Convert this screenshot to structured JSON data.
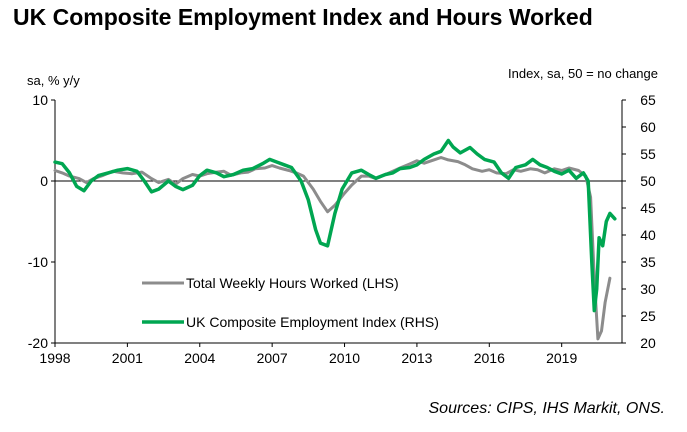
{
  "chart_data": {
    "type": "line",
    "title": "UK Composite Employment Index and Hours Worked",
    "left_axis_label": "sa, % y/y",
    "right_axis_label": "Index, sa, 50 = no change",
    "source": "Sources: CIPS, IHS Markit, ONS.",
    "x_ticks": [
      "1998",
      "2001",
      "2004",
      "2007",
      "2010",
      "2013",
      "2016",
      "2019"
    ],
    "x_range": [
      1998,
      2021.5
    ],
    "y_left": {
      "range": [
        -20,
        10
      ],
      "ticks": [
        "10",
        "0",
        "-10",
        "-20"
      ]
    },
    "y_right": {
      "range": [
        20,
        65
      ],
      "ticks": [
        "65",
        "60",
        "55",
        "50",
        "45",
        "40",
        "35",
        "30",
        "25",
        "20"
      ]
    },
    "grid": false,
    "legend_placement": "center-left",
    "series": [
      {
        "name": "Total Weekly Hours Worked (LHS)",
        "axis": "left",
        "color": "#8c8c8c",
        "points": [
          [
            1998.0,
            1.3
          ],
          [
            1998.3,
            1.0
          ],
          [
            1998.6,
            0.6
          ],
          [
            1999.0,
            0.3
          ],
          [
            1999.3,
            -0.2
          ],
          [
            1999.6,
            0.3
          ],
          [
            2000.0,
            0.7
          ],
          [
            2000.4,
            1.2
          ],
          [
            2000.8,
            1.0
          ],
          [
            2001.2,
            0.9
          ],
          [
            2001.6,
            1.1
          ],
          [
            2002.0,
            0.3
          ],
          [
            2002.3,
            -0.2
          ],
          [
            2002.7,
            0.2
          ],
          [
            2003.0,
            -0.4
          ],
          [
            2003.3,
            0.3
          ],
          [
            2003.7,
            0.8
          ],
          [
            2004.0,
            0.6
          ],
          [
            2004.3,
            0.9
          ],
          [
            2004.7,
            1.1
          ],
          [
            2005.0,
            1.2
          ],
          [
            2005.3,
            0.7
          ],
          [
            2005.7,
            1.0
          ],
          [
            2006.0,
            1.1
          ],
          [
            2006.3,
            1.5
          ],
          [
            2006.7,
            1.6
          ],
          [
            2007.0,
            1.9
          ],
          [
            2007.3,
            1.6
          ],
          [
            2007.7,
            1.3
          ],
          [
            2008.0,
            1.0
          ],
          [
            2008.3,
            0.6
          ],
          [
            2008.7,
            -1.0
          ],
          [
            2009.0,
            -2.5
          ],
          [
            2009.3,
            -3.8
          ],
          [
            2009.6,
            -3.0
          ],
          [
            2010.0,
            -1.5
          ],
          [
            2010.3,
            -0.5
          ],
          [
            2010.7,
            0.6
          ],
          [
            2011.0,
            0.6
          ],
          [
            2011.3,
            0.3
          ],
          [
            2011.7,
            0.8
          ],
          [
            2012.0,
            1.2
          ],
          [
            2012.3,
            1.6
          ],
          [
            2012.7,
            2.1
          ],
          [
            2013.0,
            2.5
          ],
          [
            2013.3,
            2.2
          ],
          [
            2013.7,
            2.6
          ],
          [
            2014.0,
            2.9
          ],
          [
            2014.3,
            2.6
          ],
          [
            2014.7,
            2.4
          ],
          [
            2015.0,
            2.0
          ],
          [
            2015.3,
            1.5
          ],
          [
            2015.7,
            1.2
          ],
          [
            2016.0,
            1.4
          ],
          [
            2016.3,
            1.0
          ],
          [
            2016.7,
            0.9
          ],
          [
            2017.0,
            1.4
          ],
          [
            2017.3,
            1.2
          ],
          [
            2017.7,
            1.5
          ],
          [
            2018.0,
            1.4
          ],
          [
            2018.3,
            1.0
          ],
          [
            2018.7,
            1.5
          ],
          [
            2019.0,
            1.3
          ],
          [
            2019.3,
            1.6
          ],
          [
            2019.7,
            1.3
          ],
          [
            2020.0,
            0.6
          ],
          [
            2020.2,
            -2.0
          ],
          [
            2020.35,
            -12.0
          ],
          [
            2020.5,
            -19.5
          ],
          [
            2020.65,
            -18.5
          ],
          [
            2020.8,
            -15.0
          ],
          [
            2021.0,
            -12.0
          ]
        ]
      },
      {
        "name": "UK Composite Employment Index (RHS)",
        "axis": "right",
        "color": "#00a651",
        "points": [
          [
            1998.0,
            53.5
          ],
          [
            1998.3,
            53.2
          ],
          [
            1998.6,
            51.5
          ],
          [
            1998.9,
            49.0
          ],
          [
            1999.2,
            48.2
          ],
          [
            1999.5,
            50.0
          ],
          [
            1999.8,
            51.0
          ],
          [
            2000.2,
            51.5
          ],
          [
            2000.6,
            52.0
          ],
          [
            2001.0,
            52.3
          ],
          [
            2001.4,
            51.8
          ],
          [
            2001.7,
            50.0
          ],
          [
            2002.0,
            48.0
          ],
          [
            2002.3,
            48.5
          ],
          [
            2002.7,
            50.0
          ],
          [
            2003.0,
            49.0
          ],
          [
            2003.3,
            48.4
          ],
          [
            2003.7,
            49.2
          ],
          [
            2004.0,
            51.0
          ],
          [
            2004.3,
            52.0
          ],
          [
            2004.7,
            51.5
          ],
          [
            2005.0,
            50.8
          ],
          [
            2005.4,
            51.2
          ],
          [
            2005.8,
            52.0
          ],
          [
            2006.2,
            52.3
          ],
          [
            2006.6,
            53.2
          ],
          [
            2006.9,
            54.0
          ],
          [
            2007.2,
            53.5
          ],
          [
            2007.5,
            53.0
          ],
          [
            2007.8,
            52.5
          ],
          [
            2008.2,
            50.0
          ],
          [
            2008.5,
            46.5
          ],
          [
            2008.8,
            41.0
          ],
          [
            2009.0,
            38.5
          ],
          [
            2009.3,
            38.0
          ],
          [
            2009.6,
            44.0
          ],
          [
            2009.9,
            48.5
          ],
          [
            2010.3,
            51.5
          ],
          [
            2010.7,
            52.0
          ],
          [
            2011.0,
            51.2
          ],
          [
            2011.3,
            50.5
          ],
          [
            2011.7,
            51.2
          ],
          [
            2012.0,
            51.5
          ],
          [
            2012.3,
            52.3
          ],
          [
            2012.7,
            52.5
          ],
          [
            2013.0,
            53.0
          ],
          [
            2013.3,
            54.0
          ],
          [
            2013.7,
            55.0
          ],
          [
            2014.0,
            55.5
          ],
          [
            2014.3,
            57.5
          ],
          [
            2014.5,
            56.3
          ],
          [
            2014.8,
            55.2
          ],
          [
            2015.2,
            56.2
          ],
          [
            2015.5,
            55.0
          ],
          [
            2015.8,
            54.0
          ],
          [
            2016.2,
            53.5
          ],
          [
            2016.5,
            51.5
          ],
          [
            2016.8,
            50.5
          ],
          [
            2017.1,
            52.5
          ],
          [
            2017.5,
            53.0
          ],
          [
            2017.8,
            54.0
          ],
          [
            2018.1,
            53.0
          ],
          [
            2018.4,
            52.5
          ],
          [
            2018.7,
            51.8
          ],
          [
            2019.0,
            51.3
          ],
          [
            2019.3,
            52.0
          ],
          [
            2019.6,
            50.5
          ],
          [
            2019.9,
            51.5
          ],
          [
            2020.1,
            50.0
          ],
          [
            2020.25,
            35.0
          ],
          [
            2020.35,
            26.0
          ],
          [
            2020.45,
            30.0
          ],
          [
            2020.55,
            39.5
          ],
          [
            2020.7,
            38.0
          ],
          [
            2020.85,
            42.5
          ],
          [
            2021.0,
            44.0
          ],
          [
            2021.2,
            43.0
          ]
        ]
      }
    ]
  }
}
